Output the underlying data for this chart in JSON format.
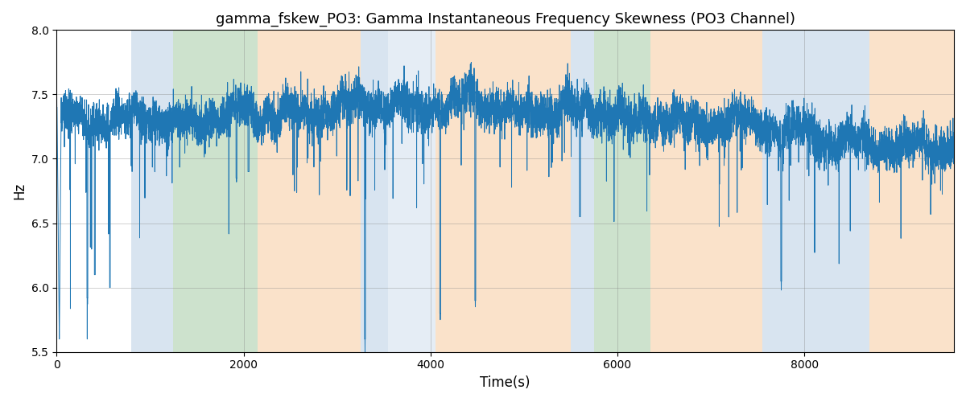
{
  "title": "gamma_fskew_PO3: Gamma Instantaneous Frequency Skewness (PO3 Channel)",
  "xlabel": "Time(s)",
  "ylabel": "Hz",
  "ylim": [
    5.5,
    8.0
  ],
  "xlim": [
    0,
    9600
  ],
  "yticks": [
    5.5,
    6.0,
    6.5,
    7.0,
    7.5,
    8.0
  ],
  "xticks": [
    0,
    2000,
    4000,
    6000,
    8000
  ],
  "line_color": "#1f77b4",
  "line_width": 0.7,
  "bg_regions": [
    {
      "xmin": 800,
      "xmax": 1250,
      "color": "#aac4de",
      "alpha": 0.45
    },
    {
      "xmin": 1250,
      "xmax": 2150,
      "color": "#90c090",
      "alpha": 0.45
    },
    {
      "xmin": 2150,
      "xmax": 3250,
      "color": "#f5c08a",
      "alpha": 0.45
    },
    {
      "xmin": 3250,
      "xmax": 3550,
      "color": "#aac4de",
      "alpha": 0.45
    },
    {
      "xmin": 3550,
      "xmax": 4050,
      "color": "#aac4de",
      "alpha": 0.3
    },
    {
      "xmin": 4050,
      "xmax": 5500,
      "color": "#f5c08a",
      "alpha": 0.45
    },
    {
      "xmin": 5500,
      "xmax": 5750,
      "color": "#aac4de",
      "alpha": 0.45
    },
    {
      "xmin": 5750,
      "xmax": 6350,
      "color": "#90c090",
      "alpha": 0.45
    },
    {
      "xmin": 6350,
      "xmax": 7550,
      "color": "#f5c08a",
      "alpha": 0.45
    },
    {
      "xmin": 7550,
      "xmax": 8700,
      "color": "#aac4de",
      "alpha": 0.45
    },
    {
      "xmin": 8700,
      "xmax": 9600,
      "color": "#f5c08a",
      "alpha": 0.45
    }
  ],
  "seed": 12345,
  "n_points": 9600,
  "base_freq": 7.3,
  "noise_scale": 0.08,
  "spike_noise_scale": 0.12
}
